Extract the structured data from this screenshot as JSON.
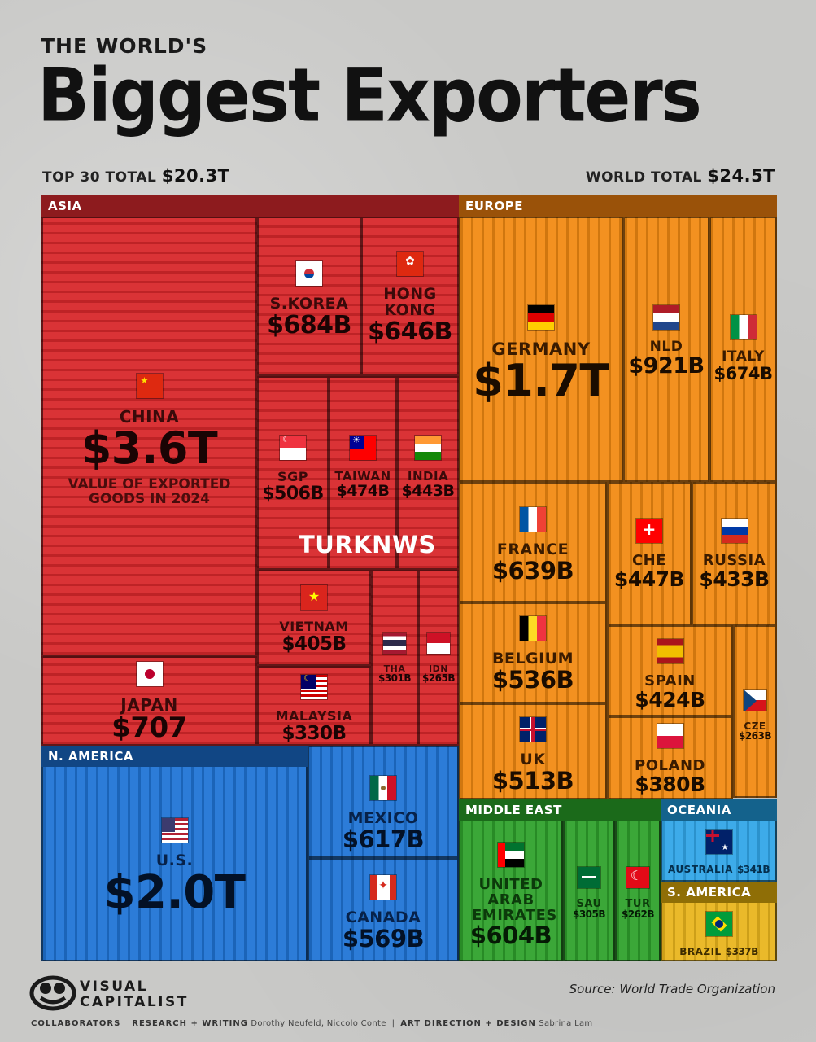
{
  "header": {
    "kicker": "THE WORLD'S",
    "title": "Biggest Exporters",
    "top30_label": "TOP 30 TOTAL",
    "top30_value": "$20.3T",
    "world_label": "WORLD TOTAL",
    "world_value": "$24.5T"
  },
  "watermark": "TURKNWS",
  "footer": {
    "brand_line1": "VISUAL",
    "brand_line2": "CAPITALIST",
    "source": "Source: World Trade Organization",
    "collab_label": "COLLABORATORS",
    "research_label": "RESEARCH + WRITING",
    "research_names": "Dorothy Neufeld, Niccolo Conte",
    "design_label": "ART DIRECTION + DESIGN",
    "design_names": "Sabrina Lam"
  },
  "chart_data": {
    "type": "treemap",
    "regions": [
      {
        "name": "ASIA",
        "color": "#d8282b"
      },
      {
        "name": "EUROPE",
        "color": "#f28a12"
      },
      {
        "name": "N. AMERICA",
        "color": "#1f74d6"
      },
      {
        "name": "MIDDLE EAST",
        "color": "#2fa22c"
      },
      {
        "name": "OCEANIA",
        "color": "#31a6e8"
      },
      {
        "name": "S. AMERICA",
        "color": "#e9b51d"
      }
    ],
    "items": [
      {
        "region": "ASIA",
        "country": "CHINA",
        "value_label": "$3.6T",
        "value_busd": 3600,
        "note": "VALUE OF EXPORTED GOODS IN 2024"
      },
      {
        "region": "ASIA",
        "country": "JAPAN",
        "value_label": "$707",
        "value_busd": 707
      },
      {
        "region": "ASIA",
        "country": "S.KOREA",
        "value_label": "$684B",
        "value_busd": 684
      },
      {
        "region": "ASIA",
        "country": "HONG KONG",
        "value_label": "$646B",
        "value_busd": 646
      },
      {
        "region": "ASIA",
        "country": "SGP",
        "value_label": "$506B",
        "value_busd": 506
      },
      {
        "region": "ASIA",
        "country": "TAIWAN",
        "value_label": "$474B",
        "value_busd": 474
      },
      {
        "region": "ASIA",
        "country": "INDIA",
        "value_label": "$443B",
        "value_busd": 443
      },
      {
        "region": "ASIA",
        "country": "VIETNAM",
        "value_label": "$405B",
        "value_busd": 405
      },
      {
        "region": "ASIA",
        "country": "MALAYSIA",
        "value_label": "$330B",
        "value_busd": 330
      },
      {
        "region": "ASIA",
        "country": "THA",
        "value_label": "$301B",
        "value_busd": 301
      },
      {
        "region": "ASIA",
        "country": "IDN",
        "value_label": "$265B",
        "value_busd": 265
      },
      {
        "region": "EUROPE",
        "country": "GERMANY",
        "value_label": "$1.7T",
        "value_busd": 1700
      },
      {
        "region": "EUROPE",
        "country": "NLD",
        "value_label": "$921B",
        "value_busd": 921
      },
      {
        "region": "EUROPE",
        "country": "ITALY",
        "value_label": "$674B",
        "value_busd": 674
      },
      {
        "region": "EUROPE",
        "country": "FRANCE",
        "value_label": "$639B",
        "value_busd": 639
      },
      {
        "region": "EUROPE",
        "country": "CHE",
        "value_label": "$447B",
        "value_busd": 447
      },
      {
        "region": "EUROPE",
        "country": "RUSSIA",
        "value_label": "$433B",
        "value_busd": 433
      },
      {
        "region": "EUROPE",
        "country": "BELGIUM",
        "value_label": "$536B",
        "value_busd": 536
      },
      {
        "region": "EUROPE",
        "country": "SPAIN",
        "value_label": "$424B",
        "value_busd": 424
      },
      {
        "region": "EUROPE",
        "country": "CZE",
        "value_label": "$263B",
        "value_busd": 263
      },
      {
        "region": "EUROPE",
        "country": "UK",
        "value_label": "$513B",
        "value_busd": 513
      },
      {
        "region": "EUROPE",
        "country": "POLAND",
        "value_label": "$380B",
        "value_busd": 380
      },
      {
        "region": "N. AMERICA",
        "country": "U.S.",
        "value_label": "$2.0T",
        "value_busd": 2000
      },
      {
        "region": "N. AMERICA",
        "country": "MEXICO",
        "value_label": "$617B",
        "value_busd": 617
      },
      {
        "region": "N. AMERICA",
        "country": "CANADA",
        "value_label": "$569B",
        "value_busd": 569
      },
      {
        "region": "MIDDLE EAST",
        "country": "UNITED ARAB EMIRATES",
        "value_label": "$604B",
        "value_busd": 604
      },
      {
        "region": "MIDDLE EAST",
        "country": "SAU",
        "value_label": "$305B",
        "value_busd": 305
      },
      {
        "region": "MIDDLE EAST",
        "country": "TUR",
        "value_label": "$262B",
        "value_busd": 262
      },
      {
        "region": "OCEANIA",
        "country": "AUSTRALIA",
        "value_label": "$341B",
        "value_busd": 341
      },
      {
        "region": "S. AMERICA",
        "country": "BRAZIL",
        "value_label": "$337B",
        "value_busd": 337
      }
    ]
  }
}
